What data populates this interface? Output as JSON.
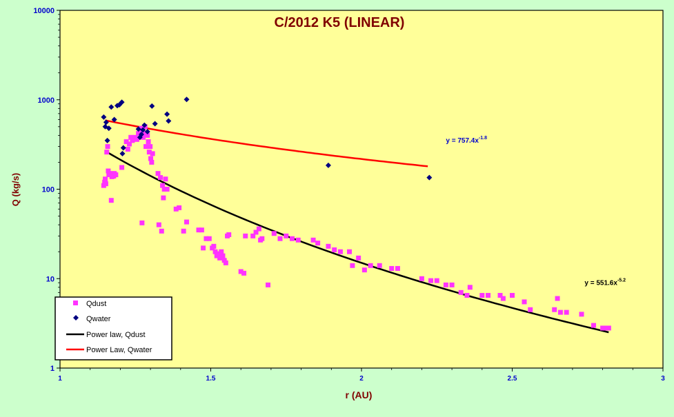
{
  "colors": {
    "page_background": "#ccffcc",
    "plot_background": "#ffff99",
    "title": "#800000",
    "axis_label": "#800000",
    "tick_label": "#0000cc",
    "annotation": "#0000cc",
    "qdust": "#ff33ff",
    "qwater": "#000080",
    "fit_dust": "#000000",
    "fit_water": "#ff0000"
  },
  "chart_data": {
    "type": "scatter",
    "title": "C/2012 K5 (LINEAR)",
    "xlabel": "r (AU)",
    "ylabel": "Q (kg/s)",
    "xlim": [
      1,
      3
    ],
    "ylim": [
      1,
      10000
    ],
    "yscale": "log",
    "grid": false,
    "legend_position": "bottom-left",
    "x_ticks": [
      "1",
      "1.5",
      "2",
      "2.5",
      "3"
    ],
    "y_ticks": [
      "1",
      "10",
      "100",
      "1000",
      "10000"
    ],
    "series": [
      {
        "name": "Qdust",
        "marker": "square",
        "points": [
          [
            1.145,
            110
          ],
          [
            1.148,
            120
          ],
          [
            1.15,
            130
          ],
          [
            1.152,
            115
          ],
          [
            1.155,
            260
          ],
          [
            1.158,
            300
          ],
          [
            1.16,
            160
          ],
          [
            1.162,
            145
          ],
          [
            1.165,
            150
          ],
          [
            1.17,
            75
          ],
          [
            1.172,
            138
          ],
          [
            1.178,
            140
          ],
          [
            1.18,
            150
          ],
          [
            1.185,
            145
          ],
          [
            1.205,
            175
          ],
          [
            1.22,
            340
          ],
          [
            1.225,
            280
          ],
          [
            1.23,
            320
          ],
          [
            1.235,
            380
          ],
          [
            1.24,
            350
          ],
          [
            1.25,
            380
          ],
          [
            1.255,
            360
          ],
          [
            1.26,
            420
          ],
          [
            1.265,
            450
          ],
          [
            1.27,
            480
          ],
          [
            1.272,
            42
          ],
          [
            1.276,
            380
          ],
          [
            1.279,
            420
          ],
          [
            1.282,
            500
          ],
          [
            1.285,
            300
          ],
          [
            1.29,
            400
          ],
          [
            1.293,
            340
          ],
          [
            1.296,
            260
          ],
          [
            1.299,
            300
          ],
          [
            1.301,
            220
          ],
          [
            1.304,
            200
          ],
          [
            1.307,
            250
          ],
          [
            1.325,
            150
          ],
          [
            1.328,
            40
          ],
          [
            1.333,
            135
          ],
          [
            1.337,
            34
          ],
          [
            1.34,
            110
          ],
          [
            1.343,
            80
          ],
          [
            1.346,
            100
          ],
          [
            1.35,
            130
          ],
          [
            1.355,
            100
          ],
          [
            1.385,
            60
          ],
          [
            1.395,
            62
          ],
          [
            1.41,
            34
          ],
          [
            1.42,
            43
          ],
          [
            1.46,
            35
          ],
          [
            1.47,
            35
          ],
          [
            1.475,
            22
          ],
          [
            1.485,
            28
          ],
          [
            1.495,
            28
          ],
          [
            1.505,
            22
          ],
          [
            1.51,
            23
          ],
          [
            1.515,
            20
          ],
          [
            1.52,
            18
          ],
          [
            1.525,
            19
          ],
          [
            1.53,
            17
          ],
          [
            1.535,
            20
          ],
          [
            1.54,
            18
          ],
          [
            1.545,
            16
          ],
          [
            1.55,
            15
          ],
          [
            1.555,
            30
          ],
          [
            1.56,
            31
          ],
          [
            1.6,
            12
          ],
          [
            1.61,
            11.5
          ],
          [
            1.615,
            30
          ],
          [
            1.64,
            30
          ],
          [
            1.65,
            33
          ],
          [
            1.66,
            36
          ],
          [
            1.665,
            27
          ],
          [
            1.67,
            28
          ],
          [
            1.69,
            8.5
          ],
          [
            1.71,
            32
          ],
          [
            1.73,
            28
          ],
          [
            1.75,
            30
          ],
          [
            1.77,
            28
          ],
          [
            1.79,
            27
          ],
          [
            1.84,
            27
          ],
          [
            1.855,
            25
          ],
          [
            1.89,
            23
          ],
          [
            1.91,
            21
          ],
          [
            1.93,
            20
          ],
          [
            1.96,
            20
          ],
          [
            1.97,
            14
          ],
          [
            1.99,
            17
          ],
          [
            2.01,
            12.5
          ],
          [
            2.03,
            14
          ],
          [
            2.06,
            14
          ],
          [
            2.1,
            13
          ],
          [
            2.12,
            13
          ],
          [
            2.2,
            10
          ],
          [
            2.23,
            9.5
          ],
          [
            2.25,
            9.5
          ],
          [
            2.28,
            8.5
          ],
          [
            2.3,
            8.5
          ],
          [
            2.33,
            7
          ],
          [
            2.35,
            6.5
          ],
          [
            2.36,
            8
          ],
          [
            2.4,
            6.5
          ],
          [
            2.42,
            6.5
          ],
          [
            2.46,
            6.5
          ],
          [
            2.47,
            6
          ],
          [
            2.5,
            6.5
          ],
          [
            2.54,
            5.5
          ],
          [
            2.56,
            4.5
          ],
          [
            2.64,
            4.5
          ],
          [
            2.65,
            6
          ],
          [
            2.66,
            4.2
          ],
          [
            2.68,
            4.2
          ],
          [
            2.73,
            4
          ],
          [
            2.77,
            3
          ],
          [
            2.8,
            2.8
          ],
          [
            2.81,
            2.8
          ],
          [
            2.82,
            2.8
          ]
        ]
      },
      {
        "name": "Qwater",
        "marker": "diamond",
        "points": [
          [
            1.145,
            640
          ],
          [
            1.15,
            500
          ],
          [
            1.153,
            560
          ],
          [
            1.157,
            350
          ],
          [
            1.162,
            480
          ],
          [
            1.17,
            830
          ],
          [
            1.18,
            600
          ],
          [
            1.19,
            860
          ],
          [
            1.197,
            880
          ],
          [
            1.205,
            940
          ],
          [
            1.207,
            250
          ],
          [
            1.21,
            290
          ],
          [
            1.26,
            470
          ],
          [
            1.265,
            380
          ],
          [
            1.27,
            410
          ],
          [
            1.275,
            460
          ],
          [
            1.28,
            520
          ],
          [
            1.29,
            440
          ],
          [
            1.305,
            850
          ],
          [
            1.315,
            540
          ],
          [
            1.355,
            690
          ],
          [
            1.36,
            580
          ],
          [
            1.42,
            1010
          ],
          [
            1.89,
            185
          ],
          [
            2.225,
            135
          ]
        ]
      },
      {
        "name": "Power law, Qdust",
        "type": "line",
        "x": [
          1.15,
          2.82
        ],
        "coefficient": 551.6,
        "exponent": -5.2
      },
      {
        "name": "Power Law, Qwater",
        "type": "line",
        "x": [
          1.15,
          2.22
        ],
        "coefficient": 757.4,
        "exponent": -1.8
      }
    ],
    "annotations": [
      {
        "id": "water_fit",
        "base": "y = 757.4x",
        "exp": "-1.8",
        "at": [
          2.28,
          330
        ]
      },
      {
        "id": "dust_fit",
        "base": "y = 551.6x",
        "exp": "-5.2",
        "at": [
          2.74,
          8.5
        ]
      }
    ]
  }
}
